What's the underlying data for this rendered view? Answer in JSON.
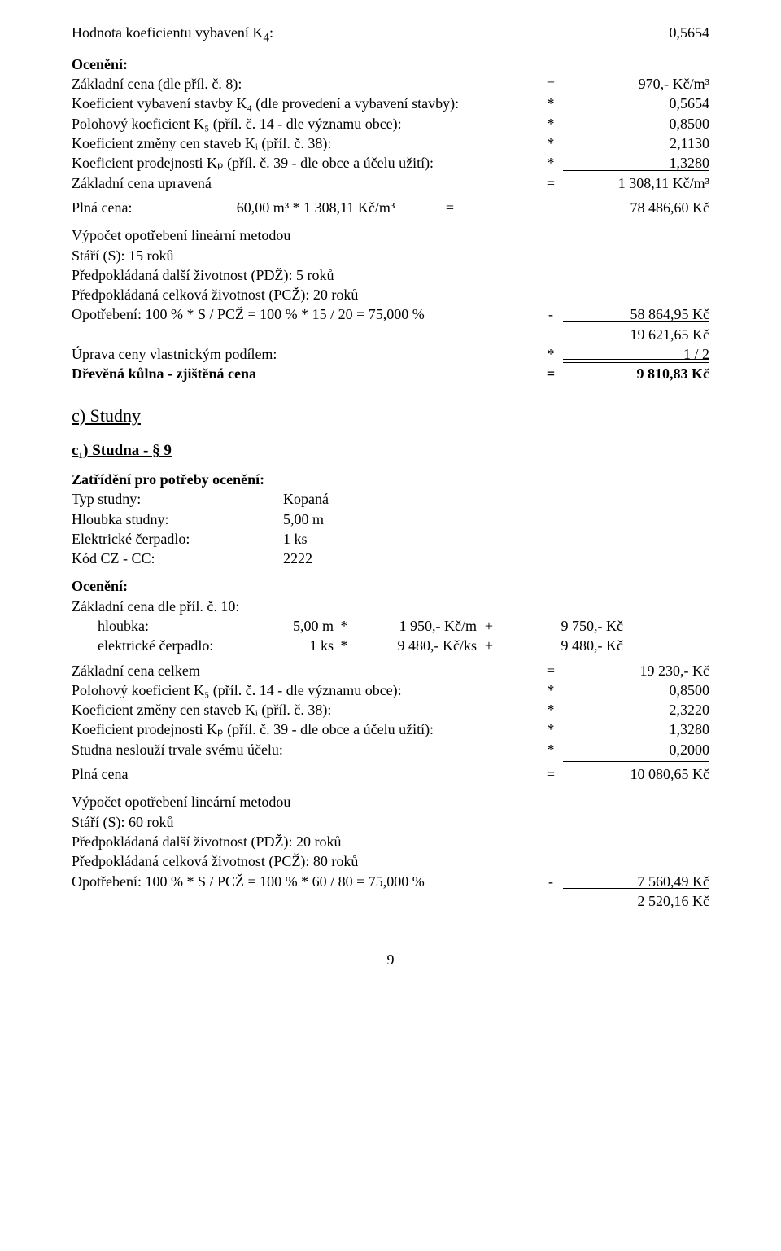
{
  "top": {
    "coef_label": "Hodnota koeficientu vybavení K",
    "coef_sub": "4",
    "coef_after": ":",
    "coef_val": "0,5654",
    "oceneni": "Ocenění:",
    "r1_l": "Základní cena (dle příl. č. 8):",
    "r1_op": "=",
    "r1_v": "970,- Kč/m³",
    "r2_l": "Koeficient vybavení stavby K₄ (dle provedení a vybavení stavby):",
    "r2_op": "*",
    "r2_v": "0,5654",
    "r3_l": "Polohový koeficient K₅ (příl. č. 14 - dle významu obce):",
    "r3_op": "*",
    "r3_v": "0,8500",
    "r4_l": "Koeficient změny cen staveb Kᵢ (příl. č. 38):",
    "r4_op": "*",
    "r4_v": "2,1130",
    "r5_l": "Koeficient prodejnosti Kₚ (příl. č. 39 - dle obce a účelu užití):",
    "r5_op": "*",
    "r5_v": "1,3280",
    "r6_l": "Základní cena upravená",
    "r6_op": "=",
    "r6_v": "1 308,11 Kč/m³",
    "plna_l": "Plná cena:",
    "plna_m": "60,00 m³ * 1 308,11 Kč/m³",
    "plna_op": "=",
    "plna_v": "78 486,60 Kč",
    "vyp": "Výpočet opotřebení lineární metodou",
    "stari": "Stáří (S): 15 roků",
    "pdz": "Předpokládaná další životnost (PDŽ): 5 roků",
    "pcz": "Předpokládaná celková životnost (PCŽ): 20 roků",
    "opo_l": "Opotřebení: 100 % * S / PCŽ = 100 % * 15 / 20 = 75,000 %",
    "opo_op": "-",
    "opo_v": "58 864,95 Kč",
    "sub_v": "19 621,65 Kč",
    "upr_l": "Úprava ceny vlastnickým podílem:",
    "upr_op": "*",
    "upr_v": "1 / 2",
    "fin_l": "Dřevěná kůlna - zjištěná cena",
    "fin_op": "=",
    "fin_v": "9 810,83 Kč"
  },
  "studny": {
    "c_title": "c) Studny",
    "c1_title": "c₁) Studna - § 9",
    "zatr": "Zatřídění pro potřeby ocenění:",
    "kv": [
      {
        "k": "Typ studny:",
        "v": "Kopaná"
      },
      {
        "k": "Hloubka studny:",
        "v": "5,00 m"
      },
      {
        "k": "Elektrické čerpadlo:",
        "v": "1 ks"
      },
      {
        "k": "Kód CZ - CC:",
        "v": "2222"
      }
    ],
    "oceneni": "Ocenění:",
    "zcena": "Základní cena dle příl. č. 10:",
    "sub1": {
      "lab": "hloubka:",
      "q": "5,00 m",
      "op": "*",
      "rate": "1 950,- Kč/m",
      "op2": "+",
      "v": "9 750,- Kč"
    },
    "sub2": {
      "lab": "elektrické čerpadlo:",
      "q": "1 ks",
      "op": "*",
      "rate": "9 480,- Kč/ks",
      "op2": "+",
      "v": "9 480,- Kč"
    },
    "r1_l": "Základní cena celkem",
    "r1_op": "=",
    "r1_v": "19 230,- Kč",
    "r2_l": "Polohový koeficient K₅ (příl. č. 14 - dle významu obce):",
    "r2_op": "*",
    "r2_v": "0,8500",
    "r3_l": "Koeficient změny cen staveb Kᵢ (příl. č. 38):",
    "r3_op": "*",
    "r3_v": "2,3220",
    "r4_l": "Koeficient prodejnosti Kₚ (příl. č. 39 - dle obce a účelu užití):",
    "r4_op": "*",
    "r4_v": "1,3280",
    "r5_l": "Studna neslouží trvale svému účelu:",
    "r5_op": "*",
    "r5_v": "0,2000",
    "plna_l": "Plná cena",
    "plna_op": "=",
    "plna_v": "10 080,65 Kč",
    "vyp": "Výpočet opotřebení lineární metodou",
    "stari": "Stáří (S): 60 roků",
    "pdz": "Předpokládaná další životnost (PDŽ): 20 roků",
    "pcz": "Předpokládaná celková životnost (PCŽ): 80 roků",
    "opo_l": "Opotřebení: 100 % * S / PCŽ = 100 % * 60 / 80 = 75,000 %",
    "opo_op": "-",
    "opo_v": "7 560,49 Kč",
    "sub_v": "2 520,16 Kč"
  },
  "pageno": "9"
}
